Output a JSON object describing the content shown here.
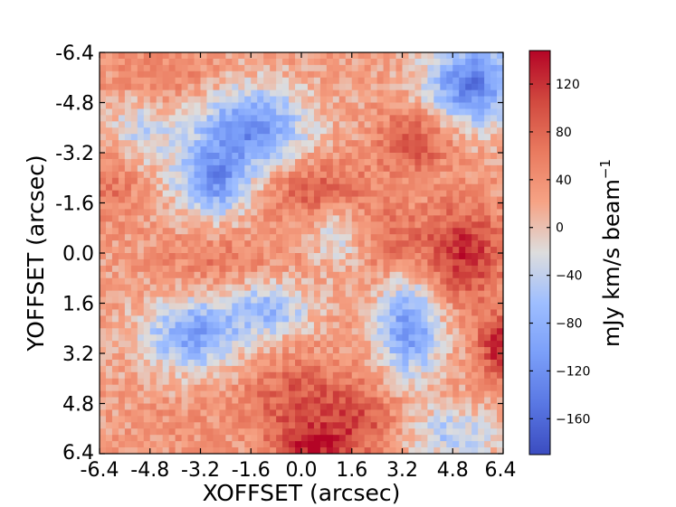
{
  "chart_data": {
    "type": "heatmap",
    "title": "",
    "xlabel": "XOFFSET (arcsec)",
    "ylabel": "YOFFSET (arcsec)",
    "colorbar_label": "mJy km/s beam$^{-1}$",
    "colorbar_label_text": "mJy km/s beam",
    "colorbar_label_sup": "−1",
    "colormap": "coolwarm",
    "x_tick_labels": [
      "-6.4",
      "-4.8",
      "-3.2",
      "-1.6",
      "0.0",
      "1.6",
      "3.2",
      "4.8",
      "6.4"
    ],
    "y_tick_labels": [
      "-6.4",
      "-4.8",
      "-3.2",
      "-1.6",
      "0.0",
      "1.6",
      "3.2",
      "4.8",
      "6.4"
    ],
    "colorbar_tick_labels": [
      "120",
      "80",
      "40",
      "0",
      "−40",
      "−80",
      "−120",
      "−160"
    ],
    "colorbar_ticks": [
      120,
      80,
      40,
      0,
      -40,
      -80,
      -120,
      -160
    ],
    "xlim": [
      -6.4,
      6.4
    ],
    "ylim": [
      6.4,
      -6.4
    ],
    "vlim": [
      -190,
      148
    ],
    "grid": false,
    "features": [
      {
        "x": -1.6,
        "y": -4.0,
        "value": -120,
        "sx": 1.2,
        "sy": 0.9
      },
      {
        "x": -2.8,
        "y": -2.3,
        "value": -110,
        "sx": 0.8,
        "sy": 0.8
      },
      {
        "x": 5.4,
        "y": -5.4,
        "value": -140,
        "sx": 1.0,
        "sy": 0.9
      },
      {
        "x": -3.4,
        "y": 2.6,
        "value": -100,
        "sx": 1.1,
        "sy": 0.8
      },
      {
        "x": -1.0,
        "y": 1.8,
        "value": -70,
        "sx": 0.9,
        "sy": 0.6
      },
      {
        "x": 3.4,
        "y": 2.4,
        "value": -110,
        "sx": 0.7,
        "sy": 1.1
      },
      {
        "x": 1.2,
        "y": -0.6,
        "value": -40,
        "sx": 0.6,
        "sy": 0.8
      },
      {
        "x": -5.2,
        "y": -3.8,
        "value": -40,
        "sx": 0.8,
        "sy": 0.8
      },
      {
        "x": 4.8,
        "y": 5.8,
        "value": -50,
        "sx": 1.0,
        "sy": 0.6
      },
      {
        "x": 5.2,
        "y": 0.0,
        "value": 120,
        "sx": 0.9,
        "sy": 1.1
      },
      {
        "x": 3.6,
        "y": -3.6,
        "value": 100,
        "sx": 0.8,
        "sy": 0.7
      },
      {
        "x": 0.6,
        "y": -2.0,
        "value": 90,
        "sx": 1.2,
        "sy": 0.7
      },
      {
        "x": 6.3,
        "y": 3.0,
        "value": 130,
        "sx": 0.5,
        "sy": 0.7
      },
      {
        "x": 0.0,
        "y": 4.8,
        "value": 95,
        "sx": 1.3,
        "sy": 1.0
      },
      {
        "x": 2.0,
        "y": 5.4,
        "value": 80,
        "sx": 0.8,
        "sy": 0.8
      },
      {
        "x": -6.0,
        "y": -2.4,
        "value": 70,
        "sx": 0.7,
        "sy": 1.0
      },
      {
        "x": -4.4,
        "y": -5.6,
        "value": 60,
        "sx": 1.2,
        "sy": 0.6
      },
      {
        "x": -2.6,
        "y": 0.2,
        "value": 60,
        "sx": 1.4,
        "sy": 0.6
      },
      {
        "x": 2.8,
        "y": -0.4,
        "value": 70,
        "sx": 1.0,
        "sy": 0.8
      },
      {
        "x": 0.4,
        "y": 6.2,
        "value": 110,
        "sx": 0.8,
        "sy": 0.5
      },
      {
        "x": -4.0,
        "y": 5.6,
        "value": 40,
        "sx": 1.0,
        "sy": 0.6
      }
    ],
    "background_value": 25
  }
}
